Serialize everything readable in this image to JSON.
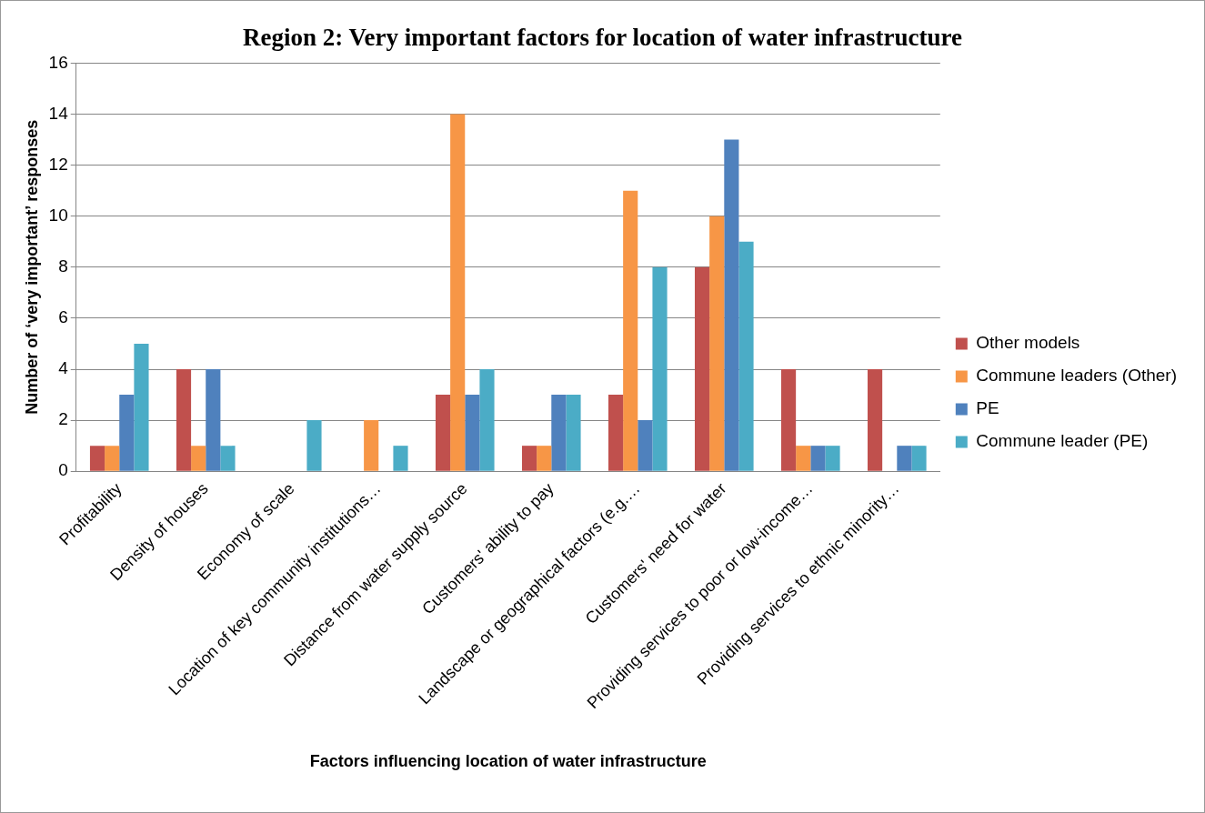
{
  "chart_data": {
    "type": "bar",
    "title": "Region 2: Very important factors for location of water infrastructure",
    "xlabel": "Factors influencing location of water infrastructure",
    "ylabel": "Number of ‘very important’ responses",
    "categories": [
      "Profitability",
      "Density of houses",
      "Economy of scale",
      "Location of key community institutions…",
      "Distance from water supply source",
      "Customers' ability to pay",
      "Landscape or geographical factors (e.g.…",
      "Customers' need for water",
      "Providing services to poor or low-income…",
      "Providing services to ethnic minority…"
    ],
    "series": [
      {
        "name": "Other models",
        "color": "#c0504d",
        "values": [
          1,
          4,
          0,
          0,
          3,
          1,
          3,
          8,
          4,
          4
        ]
      },
      {
        "name": "Commune leaders (Other)",
        "color": "#f79646",
        "values": [
          1,
          1,
          0,
          2,
          14,
          1,
          11,
          10,
          1,
          0
        ]
      },
      {
        "name": "PE",
        "color": "#4f81bd",
        "values": [
          3,
          4,
          0,
          0,
          3,
          3,
          2,
          13,
          1,
          1
        ]
      },
      {
        "name": "Commune leader (PE)",
        "color": "#4bacc6",
        "values": [
          5,
          1,
          2,
          1,
          4,
          3,
          8,
          9,
          1,
          1
        ]
      }
    ],
    "ylim": [
      0,
      16
    ],
    "yticks": [
      0,
      2,
      4,
      6,
      8,
      10,
      12,
      14,
      16
    ],
    "grid": "y",
    "legend": "right"
  }
}
